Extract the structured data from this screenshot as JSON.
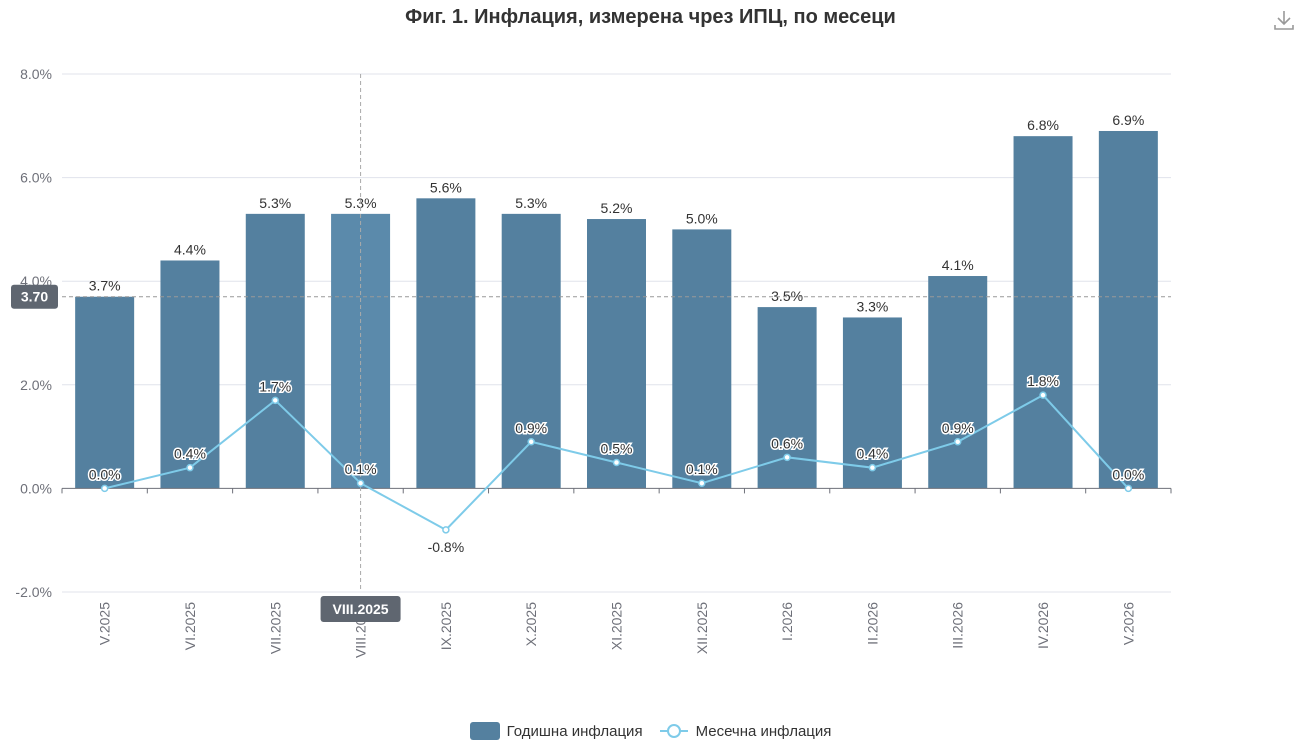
{
  "title": "Фиг. 1. Инфлация, измерена чрез ИПЦ, по месеци",
  "icons": {
    "download": "download-icon"
  },
  "colors": {
    "bar": "#54809f",
    "bar_highlight": "#5b8aab",
    "line": "#7ecbe9",
    "grid": "#e0e3eb",
    "tooltip": "#5f6670"
  },
  "crosshair": {
    "category": "VIII.2025",
    "value_label": "3.70"
  },
  "legend": {
    "bar_label": "Годишна инфлация",
    "line_label": "Месечна инфлация"
  },
  "chart_data": {
    "type": "bar",
    "categories": [
      "V.2025",
      "VI.2025",
      "VII.2025",
      "VIII.2025",
      "IX.2025",
      "X.2025",
      "XI.2025",
      "XII.2025",
      "I.2026",
      "II.2026",
      "III.2026",
      "IV.2026",
      "V.2026"
    ],
    "series": [
      {
        "name": "Годишна инфлация",
        "type": "bar",
        "values": [
          3.7,
          4.4,
          5.3,
          5.3,
          5.6,
          5.3,
          5.2,
          5.0,
          3.5,
          3.3,
          4.1,
          6.8,
          6.9
        ],
        "labels": [
          "3.7%",
          "4.4%",
          "5.3%",
          "5.3%",
          "5.6%",
          "5.3%",
          "5.2%",
          "5.0%",
          "3.5%",
          "3.3%",
          "4.1%",
          "6.8%",
          "6.9%"
        ]
      },
      {
        "name": "Месечна инфлация",
        "type": "line",
        "values": [
          0.0,
          0.4,
          1.7,
          0.1,
          -0.8,
          0.9,
          0.5,
          0.1,
          0.6,
          0.4,
          0.9,
          1.8,
          0.0
        ],
        "labels": [
          "0.0%",
          "0.4%",
          "1.7%",
          "0.1%",
          "-0.8%",
          "0.9%",
          "0.5%",
          "0.1%",
          "0.6%",
          "0.4%",
          "0.9%",
          "1.8%",
          "0.0%"
        ]
      }
    ],
    "ylim": [
      -2.0,
      8.0
    ],
    "yticks": [
      "8.0%",
      "6.0%",
      "4.0%",
      "2.0%",
      "0.0%",
      "-2.0%"
    ],
    "ytick_values": [
      8,
      6,
      4,
      2,
      0,
      -2
    ],
    "grid": true,
    "legend_position": "bottom-center"
  }
}
